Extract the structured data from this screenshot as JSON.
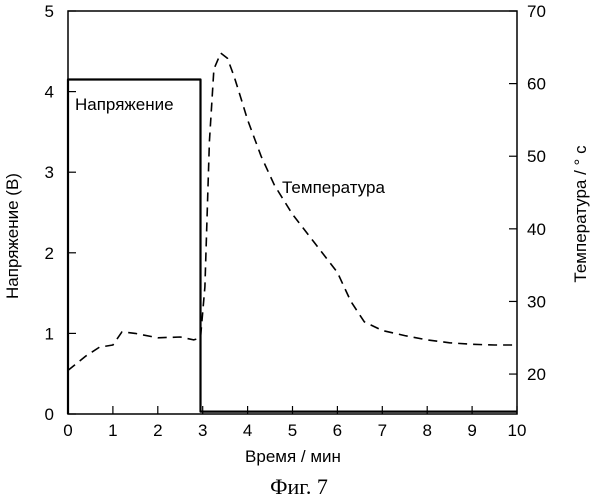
{
  "chart_data": {
    "type": "line",
    "caption": "Фиг. 7",
    "xlabel": "Время / мин",
    "ylabel_left": "Напряжение (В)",
    "ylabel_right": "Температура / ° с",
    "xlim": [
      0,
      10
    ],
    "ylim_left": [
      0,
      5
    ],
    "ylim_right": [
      14.5,
      70
    ],
    "x_ticks": [
      "0",
      "1",
      "2",
      "3",
      "4",
      "5",
      "6",
      "7",
      "8",
      "9",
      "10"
    ],
    "y_ticks_left": [
      "0",
      "1",
      "2",
      "3",
      "4",
      "5"
    ],
    "y_ticks_right": [
      "20",
      "30",
      "40",
      "50",
      "60",
      "70"
    ],
    "grid": false,
    "series": [
      {
        "name": "Напряжение",
        "axis": "left",
        "style": "solid",
        "x": [
          0,
          0,
          2.95,
          2.95,
          3.0,
          10
        ],
        "y": [
          0,
          4.15,
          4.15,
          0.03,
          0.03,
          0.03
        ]
      },
      {
        "name": "Температура",
        "axis": "right",
        "style": "dashed",
        "x": [
          0,
          0.4,
          0.7,
          1.0,
          1.2,
          1.5,
          2.0,
          2.5,
          2.8,
          2.95,
          3.05,
          3.15,
          3.25,
          3.4,
          3.55,
          3.7,
          3.85,
          4.0,
          4.3,
          4.6,
          5.0,
          5.5,
          6.0,
          6.3,
          6.6,
          7.0,
          7.5,
          8.0,
          8.5,
          9.0,
          9.5,
          10.0
        ],
        "y": [
          20.5,
          22.5,
          23.7,
          24.0,
          25.8,
          25.6,
          25.0,
          25.1,
          24.7,
          25.0,
          32.0,
          52.0,
          62.0,
          64.2,
          63.5,
          61.0,
          58.0,
          55.0,
          50.0,
          46.0,
          42.0,
          38.0,
          34.0,
          30.0,
          27.2,
          26.0,
          25.3,
          24.7,
          24.3,
          24.1,
          24.0,
          24.0
        ]
      }
    ]
  }
}
